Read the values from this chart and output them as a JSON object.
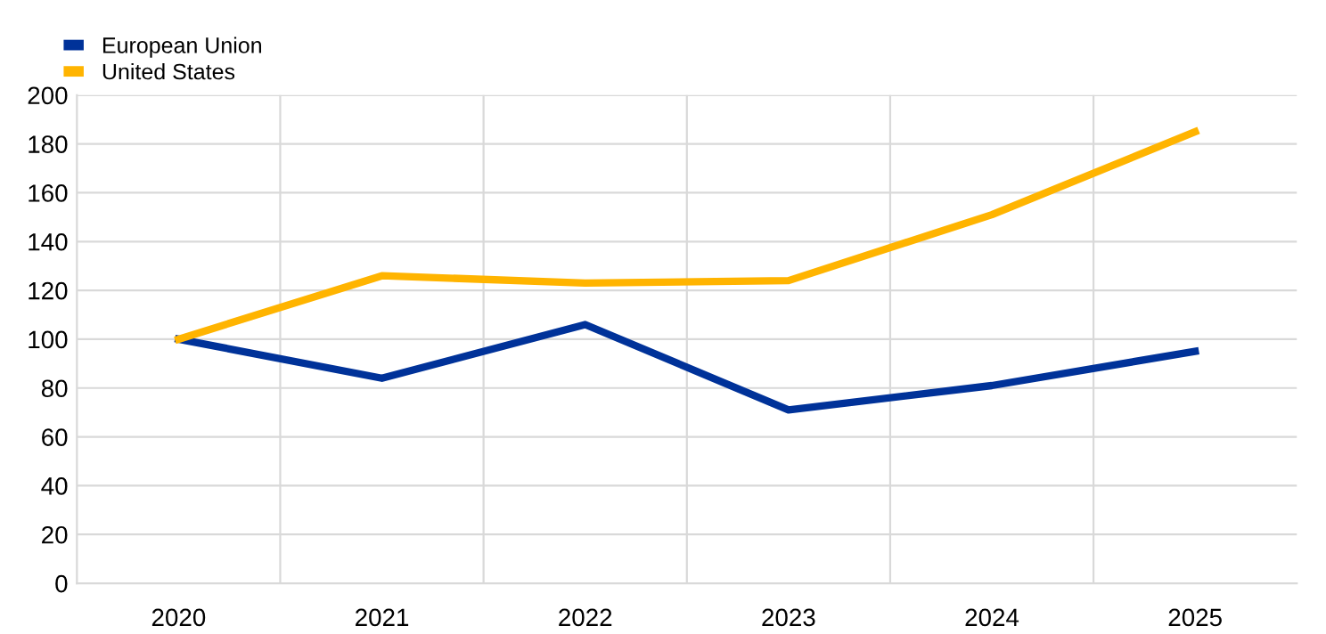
{
  "chart_data": {
    "type": "line",
    "categories": [
      "2020",
      "2021",
      "2022",
      "2023",
      "2024",
      "2025"
    ],
    "series": [
      {
        "name": "European Union",
        "color": "#003299",
        "values": [
          100,
          84,
          106,
          71,
          81,
          95
        ]
      },
      {
        "name": "United States",
        "color": "#ffb400",
        "values": [
          100,
          126,
          123,
          124,
          151,
          185
        ]
      }
    ],
    "ylim": [
      0,
      200
    ],
    "yticks": [
      0,
      20,
      40,
      60,
      80,
      100,
      120,
      140,
      160,
      180,
      200
    ],
    "grid": true,
    "legend": "top left",
    "line_style": "solid",
    "marker": "none"
  }
}
